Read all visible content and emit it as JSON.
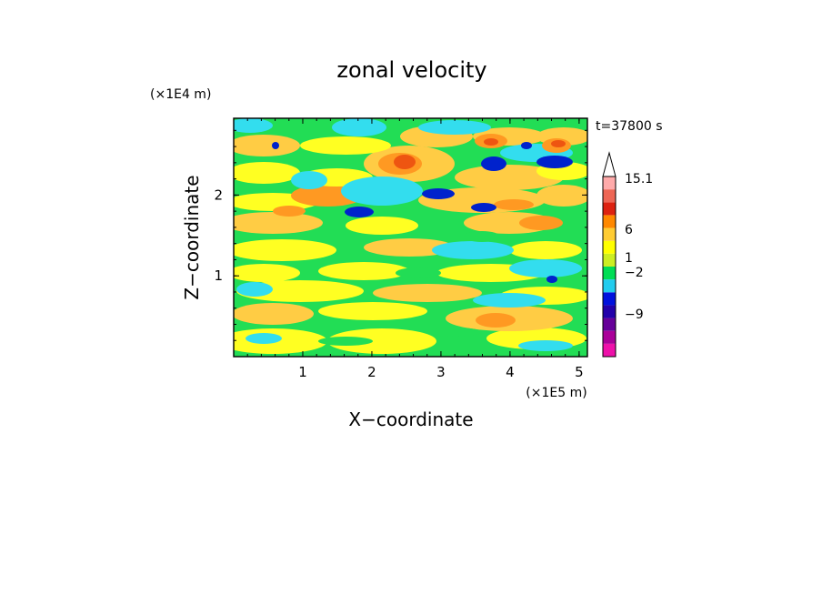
{
  "chart_data": {
    "type": "heatmap",
    "title": "zonal velocity",
    "xlabel": "X−coordinate",
    "ylabel": "Z−coordinate",
    "x_scale_label": "(×1E5 m)",
    "y_scale_label": "(×1E4 m)",
    "time_label": "t=37800 s",
    "xlim": [
      0,
      5.12
    ],
    "ylim": [
      0,
      2.95
    ],
    "x_ticks": [
      "1",
      "2",
      "3",
      "4",
      "5"
    ],
    "y_ticks": [
      "1",
      "2"
    ],
    "x_tick_values": [
      1,
      2,
      3,
      4,
      5
    ],
    "y_tick_values": [
      1,
      2
    ],
    "colorbar": {
      "tick_labels": [
        "15.1",
        "6",
        "1",
        "−2",
        "−9"
      ],
      "bands": [
        {
          "color": "#ee11aa"
        },
        {
          "color": "#aa0099"
        },
        {
          "color": "#660099"
        },
        {
          "color": "#2200aa"
        },
        {
          "color": "#0011dd"
        },
        {
          "color": "#22ccee"
        },
        {
          "color": "#00dd55"
        },
        {
          "color": "#ccee22"
        },
        {
          "color": "#ffff00"
        },
        {
          "color": "#ffcc33"
        },
        {
          "color": "#ff8800"
        },
        {
          "color": "#dd2211"
        },
        {
          "color": "#ee6655"
        },
        {
          "color": "#ffaaaa"
        }
      ],
      "extend_max": true
    },
    "field_colors": {
      "deep_blue": "#0022cc",
      "cyan": "#33ddee",
      "green": "#22dd55",
      "yellow": "#ffff22",
      "light_orange": "#ffcc44",
      "orange": "#ff9922",
      "red_orange": "#ee5511",
      "magenta": "#cc33bb"
    }
  }
}
